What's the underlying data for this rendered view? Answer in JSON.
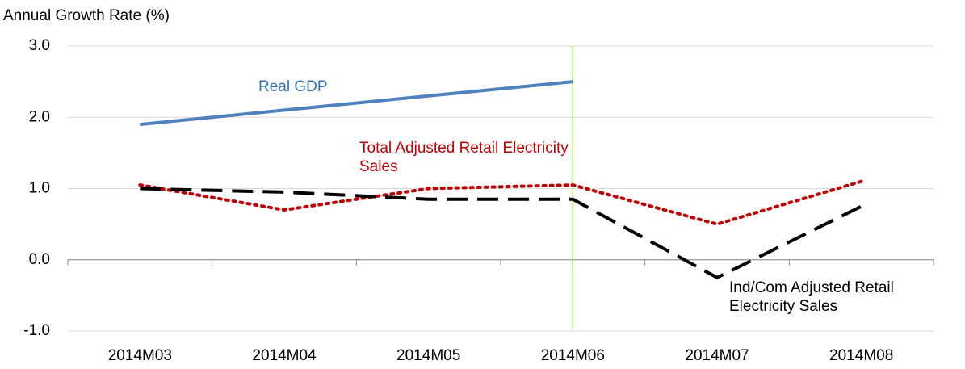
{
  "chart_data": {
    "type": "line",
    "y_axis_label": "Annual Growth Rate (%)",
    "categories": [
      "2014M03",
      "2014M04",
      "2014M05",
      "2014M06",
      "2014M07",
      "2014M08"
    ],
    "series": [
      {
        "name": "Real GDP",
        "color": "#4f81bd",
        "dash": "solid",
        "values": [
          1.9,
          2.1,
          2.3,
          2.5,
          null,
          null
        ]
      },
      {
        "name": "Total Adjusted Retail Electricity Sales",
        "color": "#c00000",
        "dash": "dotted",
        "values": [
          1.05,
          0.7,
          1.0,
          1.05,
          0.5,
          1.1
        ]
      },
      {
        "name": "Ind/Com Adjusted Retail Electricity Sales",
        "color": "#000000",
        "dash": "dashed",
        "values": [
          1.0,
          0.95,
          0.85,
          0.85,
          -0.25,
          0.75
        ]
      }
    ],
    "ylim": [
      -1,
      3
    ],
    "yticks": [
      {
        "value": -1,
        "label": "-1.0"
      },
      {
        "value": 0,
        "label": "0.0"
      },
      {
        "value": 1,
        "label": "1.0"
      },
      {
        "value": 2,
        "label": "2.0"
      },
      {
        "value": 3,
        "label": "3.0"
      }
    ],
    "grid": true,
    "vline_index": 3,
    "vline_color": "#92d050"
  }
}
